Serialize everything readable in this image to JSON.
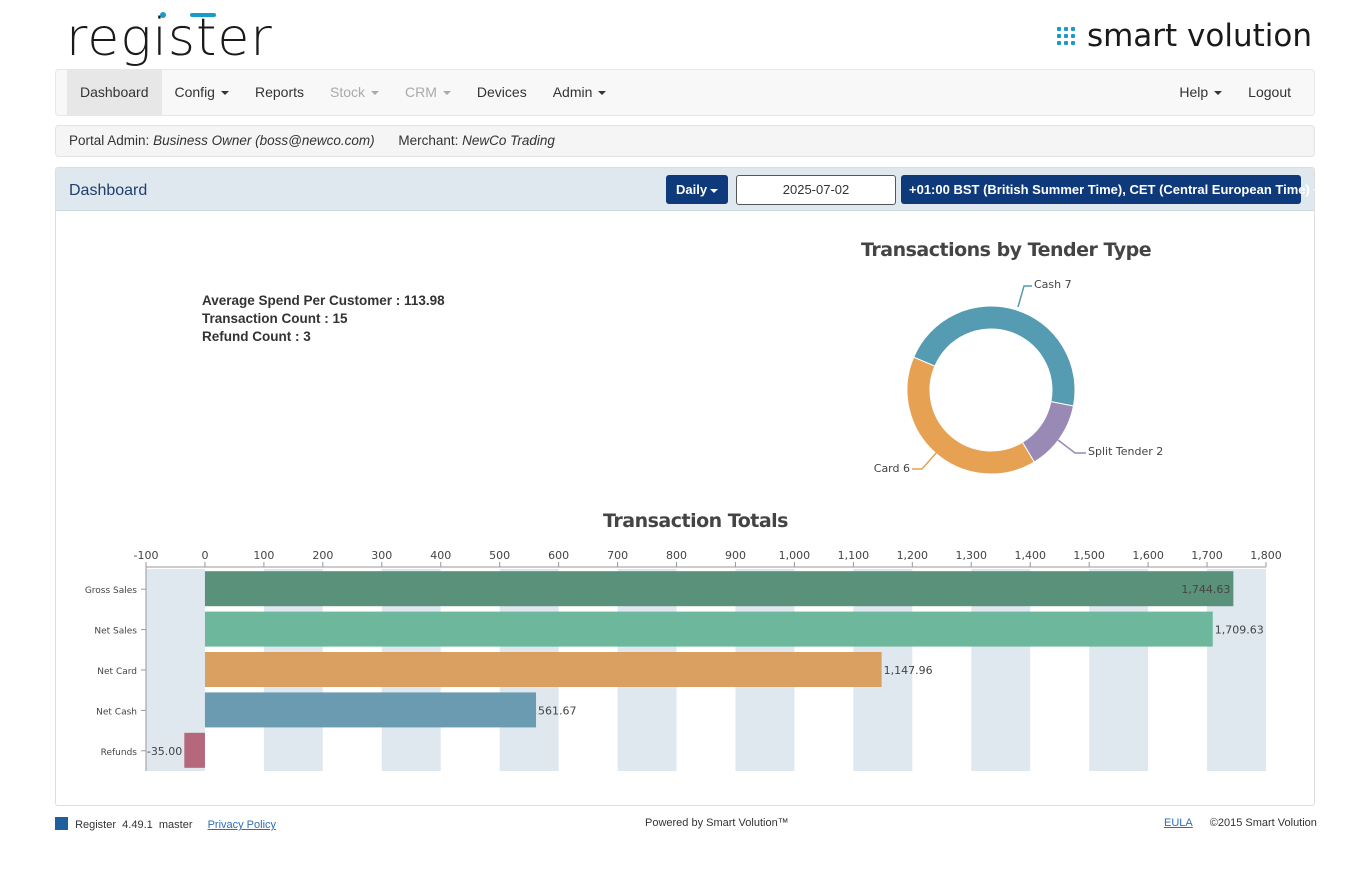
{
  "header": {
    "logo_text": "register",
    "brand_text": "smart volution"
  },
  "nav": {
    "items": [
      {
        "label": "Dashboard",
        "active": true
      },
      {
        "label": "Config",
        "caret": true
      },
      {
        "label": "Reports"
      },
      {
        "label": "Stock",
        "caret": true,
        "disabled": true
      },
      {
        "label": "CRM",
        "caret": true,
        "disabled": true
      },
      {
        "label": "Devices"
      },
      {
        "label": "Admin",
        "caret": true
      }
    ],
    "help": "Help",
    "logout": "Logout"
  },
  "info": {
    "portal_label": "Portal Admin:",
    "portal_value": "Business Owner (boss@newco.com)",
    "merchant_label": "Merchant:",
    "merchant_value": "NewCo Trading"
  },
  "dashboard": {
    "title": "Dashboard",
    "period": "Daily",
    "date": "2025-07-02",
    "timezone": "+01:00 BST (British Summer Time), CET (Central European Time)",
    "stats": [
      "Average Spend Per Customer : 113.98",
      "Transaction Count : 15",
      "Refund Count : 3"
    ]
  },
  "chart_data": [
    {
      "type": "pie",
      "title": "Transactions by Tender Type",
      "donut": true,
      "slices": [
        {
          "label": "Cash",
          "value": 7,
          "color": "#559bb2"
        },
        {
          "label": "Split Tender",
          "value": 2,
          "color": "#9889b5"
        },
        {
          "label": "Card",
          "value": 6,
          "color": "#e6a153"
        }
      ]
    },
    {
      "type": "bar",
      "orientation": "horizontal",
      "title": "Transaction Totals",
      "xlim": [
        -100,
        1800
      ],
      "ticks": [
        "-100",
        "0",
        "100",
        "200",
        "300",
        "400",
        "500",
        "600",
        "700",
        "800",
        "900",
        "1,000",
        "1,100",
        "1,200",
        "1,300",
        "1,400",
        "1,500",
        "1,600",
        "1,700",
        "1,800"
      ],
      "categories": [
        "Gross Sales",
        "Net Sales",
        "Net Card",
        "Net Cash",
        "Refunds"
      ],
      "values": [
        1744.63,
        1709.63,
        1147.96,
        561.67,
        -35.0
      ],
      "labels": [
        "1,744.63",
        "1,709.63",
        "1,147.96",
        "561.67",
        "-35.00"
      ],
      "colors": [
        "#5a917a",
        "#6db89c",
        "#d9a062",
        "#6a9bb0",
        "#b5677b"
      ]
    }
  ],
  "footer": {
    "app": "Register",
    "version": "4.49.1",
    "branch": "master",
    "privacy": "Privacy Policy",
    "powered": "Powered by Smart Volution™",
    "eula": "EULA",
    "copyright": "©2015 Smart Volution"
  }
}
